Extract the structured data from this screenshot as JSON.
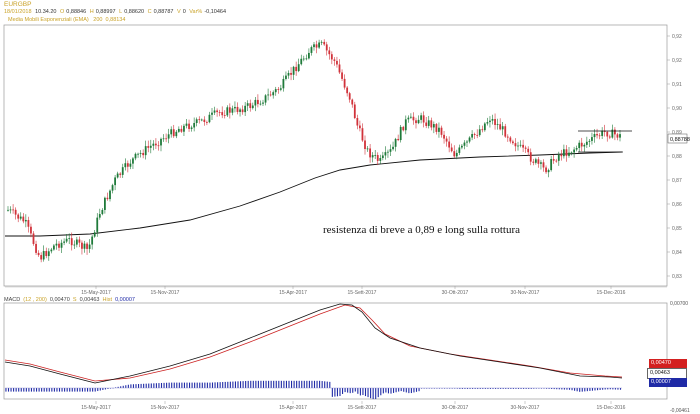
{
  "header": {
    "symbol": "EURGBP",
    "ohlc": {
      "date": "18/01/2018",
      "time": "10.34.20",
      "open_label": "O",
      "open": "0,88846",
      "high_label": "H",
      "high": "0,88997",
      "low_label": "L",
      "low": "0,88620",
      "close_label": "C",
      "close": "0,88787",
      "vol_label": "V",
      "vol": "0",
      "var_label": "Var%",
      "var": "-0,10464"
    },
    "ema": {
      "name": "Media Mobili Esponenziali (EMA)",
      "period": "200",
      "value": "0,88134"
    }
  },
  "main_chart": {
    "y_ticks": [
      "0,92",
      "0,92",
      "0,91",
      "0,90",
      "0,89",
      "0,88",
      "0,87",
      "0,86",
      "0,85",
      "0,84",
      "0,83"
    ],
    "x_ticks": [
      "15-May-2017",
      "15-Nov-2017",
      "15-Apr-2017",
      "15-Sett-2017",
      "30-Ott-2017",
      "30-Nov-2017",
      "15-Dec-2016"
    ],
    "price_tag": "0,88788",
    "annotation": "resistenza di breve a 0,89 e long sulla rottura"
  },
  "macd": {
    "label": "MACD",
    "params": "(12 , 200)",
    "macd_value": "0,00470",
    "s_label": "S",
    "signal_value": "0,00463",
    "hist_label": "Hist",
    "hist_value": "0,00007",
    "y_top": "0,00700",
    "y_bottom": "-0,00461",
    "tags": [
      "0,00470",
      "0,00463",
      "0,00007"
    ],
    "x_ticks": [
      "15-May-2017",
      "15-Nov-2017",
      "15-Apr-2017",
      "15-Sett-2017",
      "30-Ott-2017",
      "30-Nov-2017",
      "15-Dec-2016"
    ]
  },
  "colors": {
    "up": "#1f7a3a",
    "down": "#d1323a",
    "ema": "#111111",
    "macd": "#111111",
    "signal": "#cc2222",
    "hist": "#1f2aa6",
    "accent": "#c9a227"
  }
}
